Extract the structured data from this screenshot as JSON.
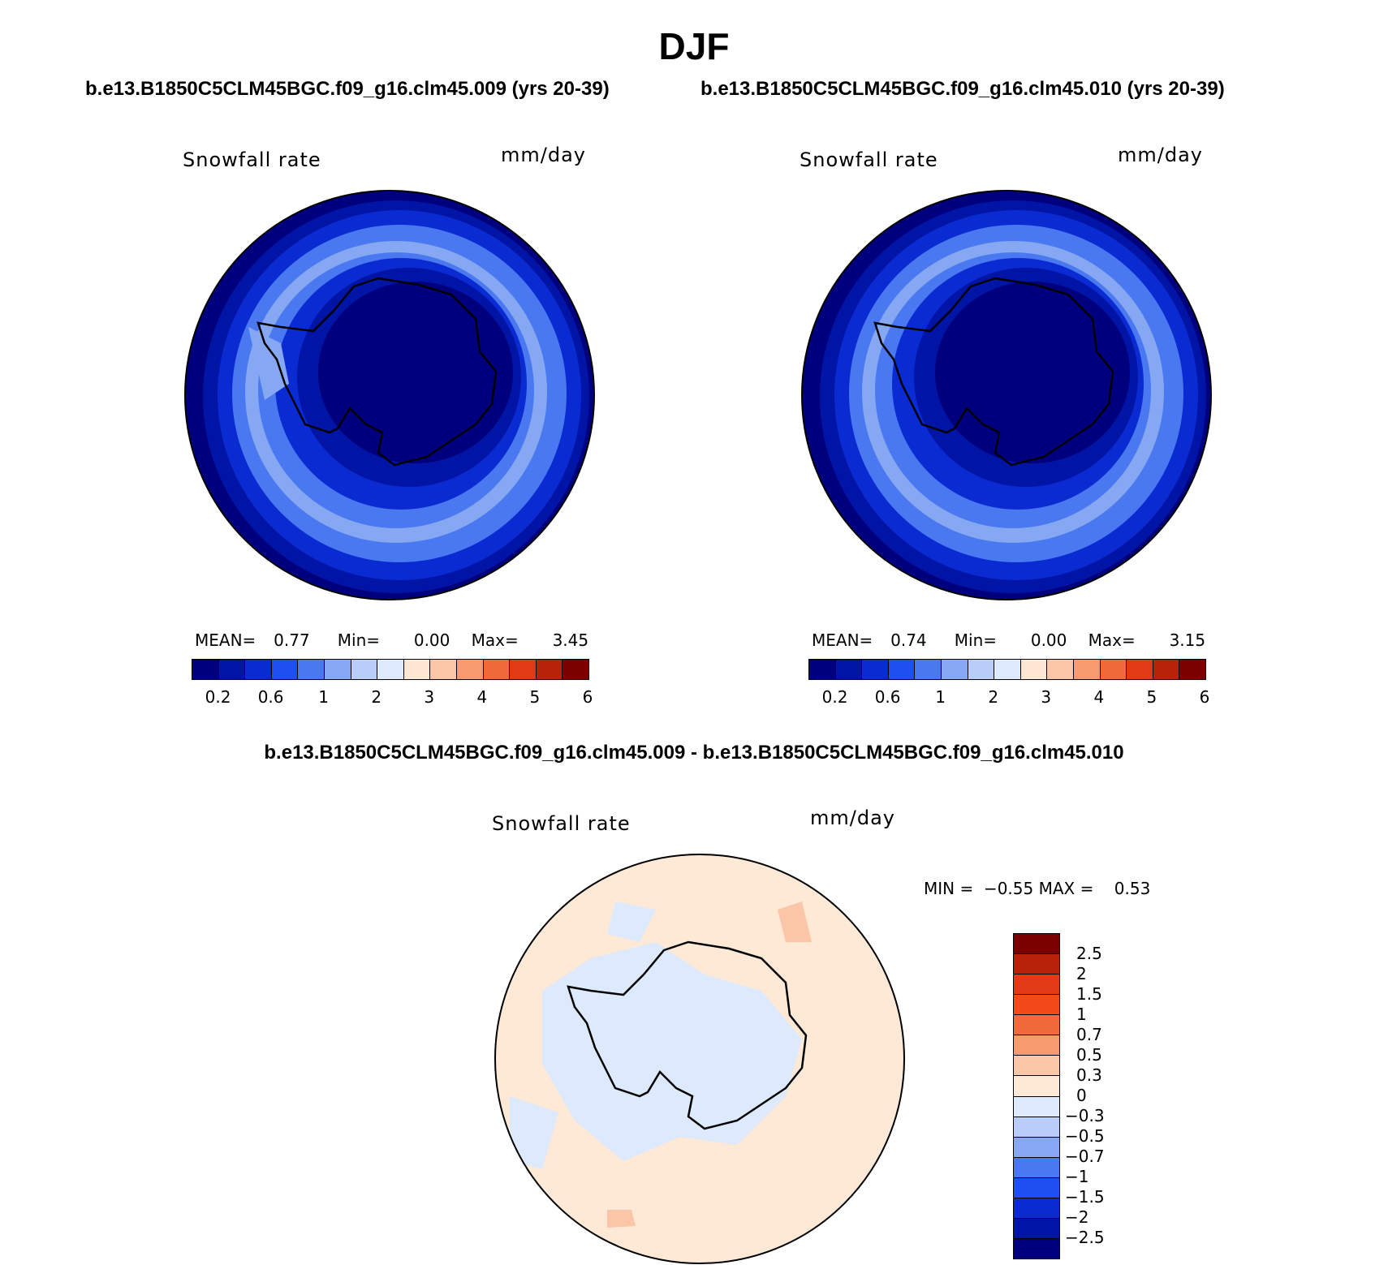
{
  "title": "DJF",
  "panels": [
    {
      "case": "b.e13.B1850C5CLM45BGC.f09_g16.clm45.009 (yrs 20-39)",
      "variable": "Snowfall rate",
      "units": "mm/day",
      "stats": {
        "mean_label": "MEAN=",
        "mean": "0.77",
        "min_label": "Min=",
        "min": "0.00",
        "max_label": "Max=",
        "max": "3.45"
      }
    },
    {
      "case": "b.e13.B1850C5CLM45BGC.f09_g16.clm45.010 (yrs 20-39)",
      "variable": "Snowfall rate",
      "units": "mm/day",
      "stats": {
        "mean_label": "MEAN=",
        "mean": "0.74",
        "min_label": "Min=",
        "min": "0.00",
        "max_label": "Max=",
        "max": "3.15"
      }
    }
  ],
  "difference": {
    "title": "b.e13.B1850C5CLM45BGC.f09_g16.clm45.009 - b.e13.B1850C5CLM45BGC.f09_g16.clm45.010",
    "variable": "Snowfall rate",
    "units": "mm/day",
    "stats": "MIN =  −0.55 MAX =    0.53",
    "colorbar_labels": [
      "2.5",
      "2",
      "1.5",
      "1",
      "0.7",
      "0.5",
      "0.3",
      "0",
      "−0.3",
      "−0.5",
      "−0.7",
      "−1",
      "−1.5",
      "−2",
      "−2.5"
    ]
  },
  "colorbar": {
    "labels": [
      "0.2",
      "0.6",
      "1",
      "2",
      "3",
      "4",
      "5",
      "6"
    ],
    "colors": [
      "#00007f",
      "#0015a6",
      "#0a2ad2",
      "#1f4ff0",
      "#4a78f0",
      "#86a8f2",
      "#b8cdf7",
      "#dde9fc",
      "#fde7d2",
      "#fbc6a8",
      "#f79a70",
      "#f06a3c",
      "#e23a14",
      "#b82208",
      "#7a0000"
    ]
  },
  "diff_colorbar": {
    "colors_top_to_bottom": [
      "#7a0000",
      "#b82208",
      "#e23a14",
      "#f24a18",
      "#f06a3c",
      "#f79a70",
      "#fbc6a8",
      "#fde9d6",
      "#dde9fc",
      "#b8cdf7",
      "#86a8f2",
      "#4a78f0",
      "#1f4ff0",
      "#0a2ad2",
      "#0015a6",
      "#00007f"
    ]
  },
  "map_palette": {
    "ocean_dark": "#00007f",
    "ring_1": "#0015a6",
    "ring_2": "#0a2ad2",
    "ring_3": "#4a78f0",
    "ring_4": "#86a8f2",
    "ring_5": "#b8cdf7",
    "diff_pos": "#fde9d6",
    "diff_neg": "#dde9fc",
    "diff_pos2": "#fbc6a8"
  }
}
